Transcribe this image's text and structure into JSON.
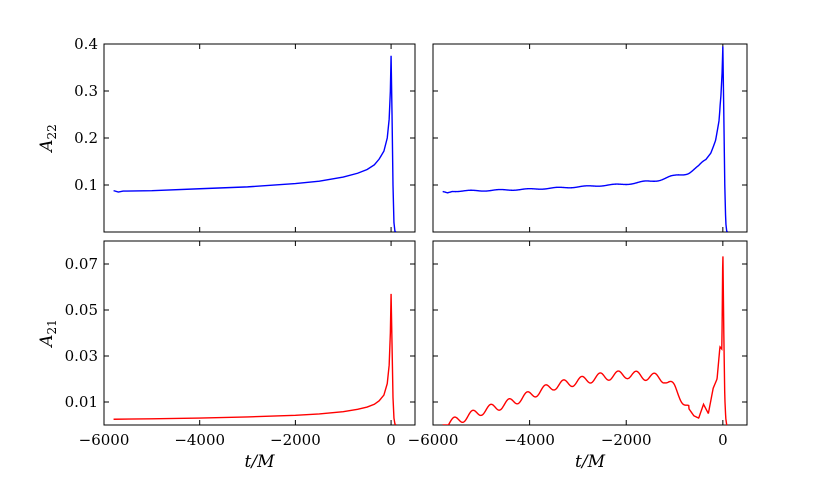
{
  "chart_data": [
    {
      "type": "line",
      "panel": "top-left",
      "ylabel": "A",
      "ylabel_sub": "22",
      "xlabel": "",
      "xlim": [
        -6000,
        500
      ],
      "ylim": [
        0.0,
        0.4
      ],
      "yticks": [
        0.1,
        0.2,
        0.3,
        0.4
      ],
      "ytick_labels": [
        "0.1",
        "0.2",
        "0.3",
        "0.4"
      ],
      "xticks": [
        -6000,
        -4000,
        -2000,
        0
      ],
      "xtick_labels": [],
      "color": "#0000ff",
      "series": [
        {
          "x": [
            -5800,
            -5700,
            -5600,
            -5000,
            -4000,
            -3000,
            -2000,
            -1500,
            -1000,
            -700,
            -500,
            -350,
            -250,
            -150,
            -80,
            -40,
            -15,
            0,
            20,
            40,
            60,
            80,
            100
          ],
          "y": [
            0.088,
            0.085,
            0.087,
            0.088,
            0.092,
            0.096,
            0.103,
            0.108,
            0.117,
            0.125,
            0.133,
            0.143,
            0.155,
            0.172,
            0.2,
            0.24,
            0.3,
            0.375,
            0.25,
            0.1,
            0.02,
            0.002,
            0.0
          ]
        }
      ]
    },
    {
      "type": "line",
      "panel": "top-right",
      "ylabel": "",
      "xlabel": "",
      "xlim": [
        -6000,
        500
      ],
      "ylim": [
        0.0,
        0.4
      ],
      "yticks": [
        0.1,
        0.2,
        0.3,
        0.4
      ],
      "ytick_labels": [],
      "xticks": [
        -6000,
        -4000,
        -2000,
        0
      ],
      "xtick_labels": [],
      "color": "#0000ff",
      "series": [
        {
          "oscillation": "small",
          "x": [
            -5800,
            -5700,
            -5600,
            -5000,
            -4000,
            -3000,
            -2000,
            -1500,
            -1000,
            -700,
            -500,
            -350,
            -250,
            -150,
            -80,
            -40,
            -15,
            0,
            20,
            40,
            60,
            80,
            100
          ],
          "y": [
            0.085,
            0.083,
            0.087,
            0.088,
            0.091,
            0.096,
            0.102,
            0.108,
            0.118,
            0.128,
            0.138,
            0.152,
            0.17,
            0.2,
            0.24,
            0.29,
            0.34,
            0.395,
            0.25,
            0.1,
            0.02,
            0.002,
            0.0
          ]
        }
      ]
    },
    {
      "type": "line",
      "panel": "bottom-left",
      "ylabel": "A",
      "ylabel_sub": "21",
      "xlabel": "t/M",
      "xlim": [
        -6000,
        500
      ],
      "ylim": [
        0.0,
        0.08
      ],
      "yticks": [
        0.01,
        0.03,
        0.05,
        0.07
      ],
      "ytick_labels": [
        "0.01",
        "0.03",
        "0.05",
        "0.07"
      ],
      "xticks": [
        -6000,
        -4000,
        -2000,
        0
      ],
      "xtick_labels": [
        "−6000",
        "−4000",
        "−2000",
        "0"
      ],
      "color": "#ff0000",
      "series": [
        {
          "x": [
            -5800,
            -5000,
            -4000,
            -3000,
            -2000,
            -1500,
            -1000,
            -700,
            -500,
            -350,
            -250,
            -150,
            -80,
            -40,
            -15,
            0,
            20,
            40,
            60,
            80,
            100
          ],
          "y": [
            0.0025,
            0.0027,
            0.003,
            0.0035,
            0.0042,
            0.0048,
            0.0058,
            0.0068,
            0.0078,
            0.009,
            0.0105,
            0.013,
            0.018,
            0.026,
            0.04,
            0.057,
            0.035,
            0.012,
            0.003,
            0.0005,
            0.0
          ]
        }
      ]
    },
    {
      "type": "line",
      "panel": "bottom-right",
      "ylabel": "",
      "xlabel": "t/M",
      "xlim": [
        -6000,
        500
      ],
      "ylim": [
        0.0,
        0.08
      ],
      "yticks": [
        0.01,
        0.03,
        0.05,
        0.07
      ],
      "ytick_labels": [],
      "xticks": [
        -6000,
        -4000,
        -2000,
        0
      ],
      "xtick_labels": [
        "−6000",
        "−4000",
        "−2000",
        "0"
      ],
      "color": "#ff0000",
      "series": [
        {
          "x": [
            -5800,
            -5500,
            -5000,
            -4500,
            -4000,
            -3500,
            -3000,
            -2500,
            -2000,
            -1500,
            -1200,
            -1000,
            -800,
            -600,
            -500,
            -400,
            -300,
            -200,
            -120,
            -60,
            -20,
            0,
            20,
            40,
            60,
            80
          ],
          "y": [
            0.0,
            0.002,
            0.006,
            0.009,
            0.013,
            0.017,
            0.019,
            0.021,
            0.022,
            0.021,
            0.02,
            0.016,
            0.01,
            0.004,
            0.003,
            0.009,
            0.005,
            0.016,
            0.02,
            0.034,
            0.033,
            0.077,
            0.04,
            0.012,
            0.003,
            0.0
          ]
        }
      ]
    }
  ]
}
